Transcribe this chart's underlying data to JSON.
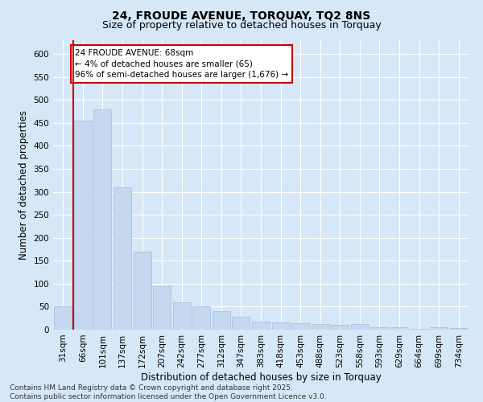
{
  "title1": "24, FROUDE AVENUE, TORQUAY, TQ2 8NS",
  "title2": "Size of property relative to detached houses in Torquay",
  "xlabel": "Distribution of detached houses by size in Torquay",
  "ylabel": "Number of detached properties",
  "categories": [
    "31sqm",
    "66sqm",
    "101sqm",
    "137sqm",
    "172sqm",
    "207sqm",
    "242sqm",
    "277sqm",
    "312sqm",
    "347sqm",
    "383sqm",
    "418sqm",
    "453sqm",
    "488sqm",
    "523sqm",
    "558sqm",
    "593sqm",
    "629sqm",
    "664sqm",
    "699sqm",
    "734sqm"
  ],
  "values": [
    50,
    455,
    480,
    310,
    170,
    95,
    60,
    50,
    40,
    28,
    18,
    15,
    14,
    12,
    10,
    12,
    5,
    5,
    2,
    5,
    3
  ],
  "bar_color": "#c5d8f0",
  "bar_edge_color": "#a8c4e0",
  "vline_color": "#cc0000",
  "annotation_text": "24 FROUDE AVENUE: 68sqm\n← 4% of detached houses are smaller (65)\n96% of semi-detached houses are larger (1,676) →",
  "annotation_box_facecolor": "#ffffff",
  "annotation_box_edgecolor": "#cc0000",
  "ylim": [
    0,
    630
  ],
  "yticks": [
    0,
    50,
    100,
    150,
    200,
    250,
    300,
    350,
    400,
    450,
    500,
    550,
    600
  ],
  "bg_color": "#d6e8f7",
  "plot_bg_color": "#d6e8f7",
  "grid_color": "#ffffff",
  "footnote": "Contains HM Land Registry data © Crown copyright and database right 2025.\nContains public sector information licensed under the Open Government Licence v3.0.",
  "title_fontsize": 10,
  "subtitle_fontsize": 9,
  "axis_label_fontsize": 8.5,
  "tick_fontsize": 7.5,
  "annotation_fontsize": 7.5,
  "footnote_fontsize": 6.5
}
